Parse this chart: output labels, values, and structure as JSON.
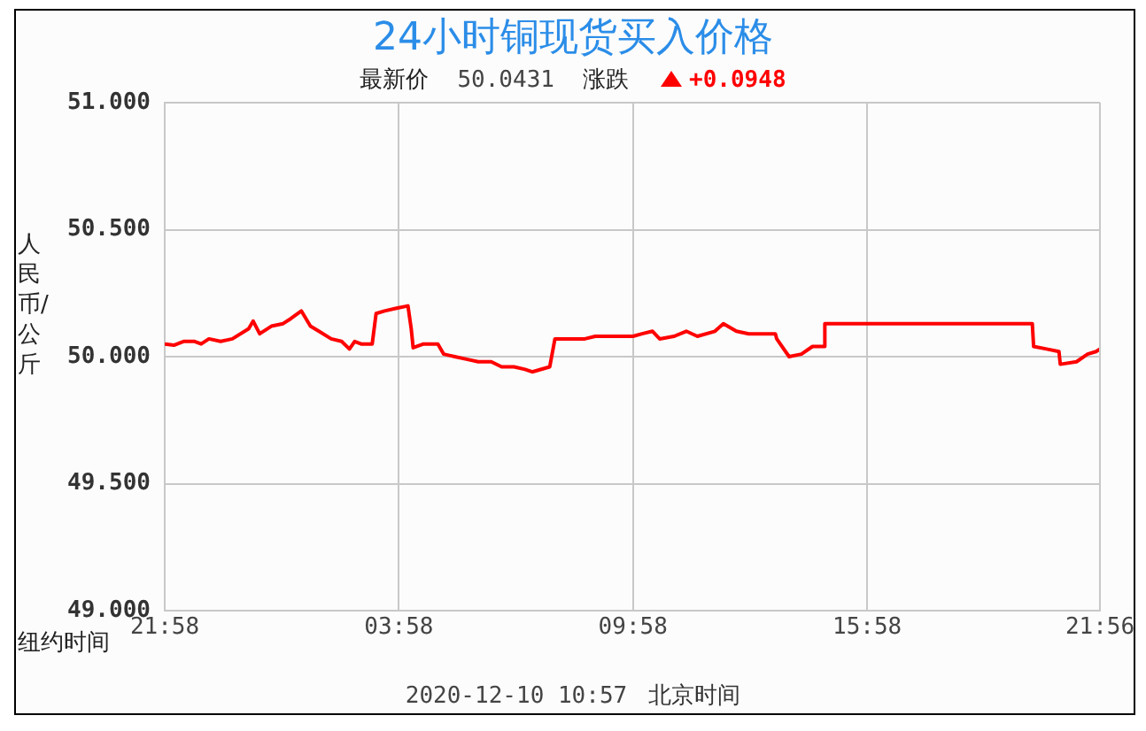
{
  "chart_data": {
    "type": "line",
    "title": "24小时铜现货买入价格",
    "ylabel": "人民币/公斤",
    "annotations": [
      "最新价",
      "50.0431",
      "涨跌",
      "+0.0948",
      "纽约时间",
      "2020-12-10 10:57",
      "北京时间"
    ],
    "series": [
      {
        "color": "#ff0000",
        "x": [
          "2020-12-08T21:58",
          "2020-12-08T22:12",
          "2020-12-08T22:27",
          "2020-12-08T22:44",
          "2020-12-08T22:54",
          "2020-12-08T23:06",
          "2020-12-08T23:24",
          "2020-12-08T23:42",
          "2020-12-09T00:07",
          "2020-12-09T00:14",
          "2020-12-09T00:24",
          "2020-12-09T00:42",
          "2020-12-09T01:00",
          "2020-12-09T01:12",
          "2020-12-09T01:28",
          "2020-12-09T01:42",
          "2020-12-09T01:55",
          "2020-12-09T02:14",
          "2020-12-09T02:30",
          "2020-12-09T02:42",
          "2020-12-09T02:50",
          "2020-12-09T03:00",
          "2020-12-09T03:17",
          "2020-12-09T03:23",
          "2020-12-09T03:36",
          "2020-12-09T03:53",
          "2020-12-09T04:12",
          "2020-12-09T04:17",
          "2020-12-09T04:20",
          "2020-12-09T04:36",
          "2020-12-09T04:58",
          "2020-12-09T05:07",
          "2020-12-09T05:24",
          "2020-12-09T05:42",
          "2020-12-09T06:00",
          "2020-12-09T06:20",
          "2020-12-09T06:36",
          "2020-12-09T06:55",
          "2020-12-09T07:12",
          "2020-12-09T07:23",
          "2020-12-09T07:50",
          "2020-12-09T07:58",
          "2020-12-09T08:18",
          "2020-12-09T08:44",
          "2020-12-09T09:00",
          "2020-12-09T09:20",
          "2020-12-09T09:58",
          "2020-12-09T10:12",
          "2020-12-09T10:28",
          "2020-12-09T10:39",
          "2020-12-09T11:01",
          "2020-12-09T11:20",
          "2020-12-09T11:37",
          "2020-12-09T12:04",
          "2020-12-09T12:17",
          "2020-12-09T12:37",
          "2020-12-09T12:56",
          "2020-12-09T13:37",
          "2020-12-09T13:39",
          "2020-12-09T13:58",
          "2020-12-09T14:17",
          "2020-12-09T14:34",
          "2020-12-09T14:52",
          "2020-12-09T14:53",
          "2020-12-09T20:12",
          "2020-12-09T20:14",
          "2020-12-09T20:34",
          "2020-12-09T20:53",
          "2020-12-09T20:55",
          "2020-12-09T21:20",
          "2020-12-09T21:37",
          "2020-12-09T21:50",
          "2020-12-09T21:56"
        ],
        "values": [
          50.05,
          50.045,
          50.06,
          50.06,
          50.05,
          50.07,
          50.06,
          50.07,
          50.11,
          50.14,
          50.09,
          50.12,
          50.13,
          50.15,
          50.18,
          50.12,
          50.1,
          50.07,
          50.06,
          50.03,
          50.06,
          50.05,
          50.05,
          50.17,
          50.18,
          50.19,
          50.2,
          50.11,
          50.035,
          50.05,
          50.05,
          50.01,
          50.0,
          49.99,
          49.98,
          49.98,
          49.96,
          49.96,
          49.95,
          49.94,
          49.96,
          50.07,
          50.07,
          50.07,
          50.08,
          50.08,
          50.08,
          50.09,
          50.1,
          50.07,
          50.08,
          50.1,
          50.08,
          50.1,
          50.13,
          50.1,
          50.09,
          50.09,
          50.07,
          50.0,
          50.01,
          50.04,
          50.04,
          50.13,
          50.13,
          50.04,
          50.03,
          50.02,
          49.97,
          49.98,
          50.01,
          50.02,
          50.03
        ]
      }
    ],
    "ylim": [
      49,
      51
    ],
    "yticks": [
      {
        "value": 49,
        "label": "49.000"
      },
      {
        "value": 49.5,
        "label": "49.500"
      },
      {
        "value": 50,
        "label": "50.000"
      },
      {
        "value": 50.5,
        "label": "50.500"
      },
      {
        "value": 51,
        "label": "51.000"
      }
    ],
    "xlim": [
      "2020-12-08T21:58",
      "2020-12-09T21:56"
    ],
    "xticks": [
      {
        "value": "2020-12-08T21:58",
        "label": "21:58"
      },
      {
        "value": "2020-12-09T03:58",
        "label": "03:58"
      },
      {
        "value": "2020-12-09T09:58",
        "label": "09:58"
      },
      {
        "value": "2020-12-09T15:58",
        "label": "15:58"
      },
      {
        "value": "2020-12-09T21:56",
        "label": "21:56"
      }
    ],
    "grid": true,
    "legend": false,
    "marker": "none",
    "line_style": "solid"
  }
}
